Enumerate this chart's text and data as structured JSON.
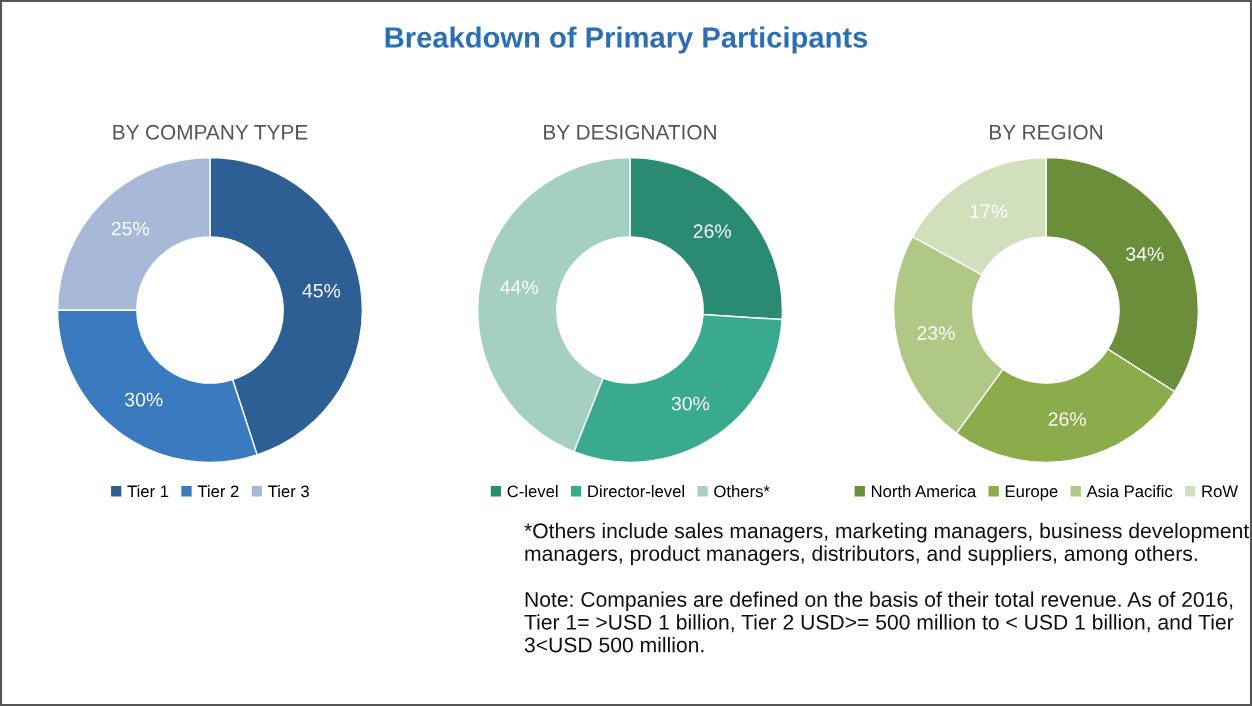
{
  "chart_data": [
    {
      "type": "other",
      "title": "Breakdown of Primary Participants"
    },
    {
      "type": "donut",
      "subtitle": "BY COMPANY TYPE",
      "categories": [
        "Tier 1",
        "Tier 2",
        "Tier 3"
      ],
      "values": [
        45,
        30,
        25
      ],
      "value_labels": [
        "45%",
        "30%",
        "25%"
      ],
      "colors": [
        "#2e5f94",
        "#3a7bbf",
        "#a7b9d6"
      ],
      "legend": "bottom"
    },
    {
      "type": "donut",
      "subtitle": "BY DESIGNATION",
      "categories": [
        "C-level",
        "Director-level",
        "Others*"
      ],
      "values": [
        26,
        30,
        44
      ],
      "value_labels": [
        "26%",
        "30%",
        "44%"
      ],
      "colors": [
        "#2a8a72",
        "#3aaa8f",
        "#a6cfc3"
      ],
      "legend": "bottom"
    },
    {
      "type": "donut",
      "subtitle": "BY REGION",
      "categories": [
        "North America",
        "Europe",
        "Asia Pacific",
        "RoW"
      ],
      "values": [
        34,
        26,
        23,
        17
      ],
      "value_labels": [
        "34%",
        "26%",
        "23%",
        "17%"
      ],
      "colors": [
        "#6b8e3a",
        "#8aac4a",
        "#b0c886",
        "#d2dfbd"
      ],
      "legend": "bottom"
    },
    {
      "type": "other",
      "annotations": [
        "*Others include sales managers, marketing managers, business development managers, product managers, distributors, and suppliers, among others.",
        "Note: Companies are defined on the basis of their total revenue. As of 2016, Tier 1= >USD 1 billion, Tier 2 USD>= 500 million to < USD 1 billion, and Tier 3<USD 500 million."
      ]
    }
  ]
}
